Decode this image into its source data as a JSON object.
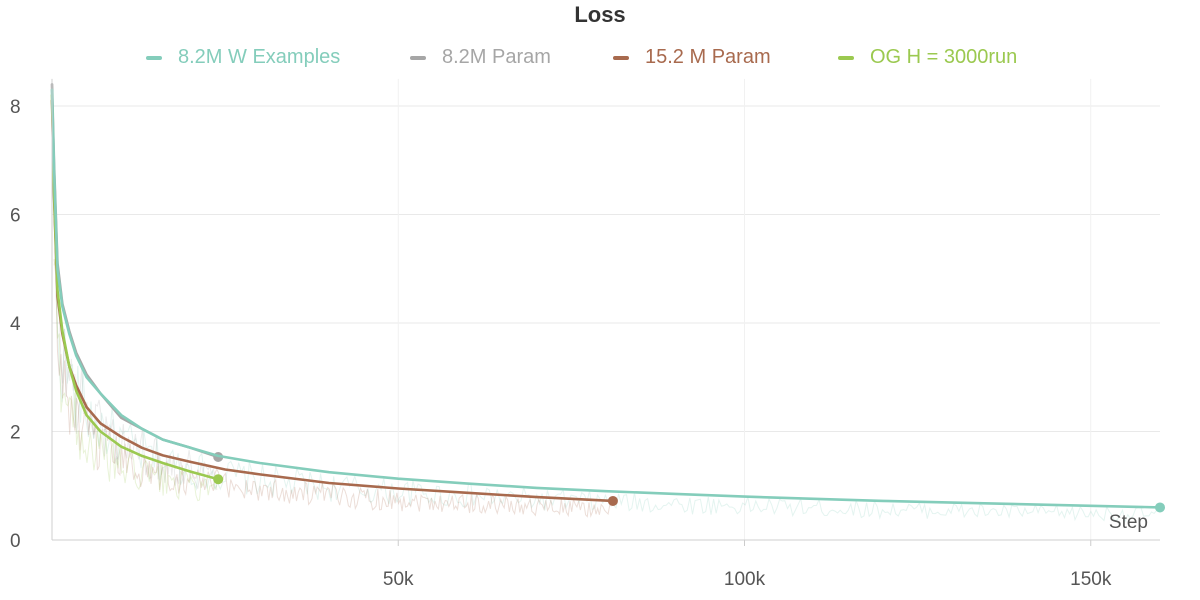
{
  "chart_data": {
    "type": "line",
    "title": "Loss",
    "xlabel": "Step",
    "ylabel": "",
    "xlim": [
      0,
      160000
    ],
    "ylim": [
      0,
      8.5
    ],
    "x_ticks": [
      50000,
      100000,
      150000
    ],
    "x_tick_labels": [
      "50k",
      "100k",
      "150k"
    ],
    "y_ticks": [
      0,
      2,
      4,
      6,
      8
    ],
    "y_tick_labels": [
      "0",
      "2",
      "4",
      "6",
      "8"
    ],
    "grid": true,
    "legend_position": "top",
    "series": [
      {
        "name": "8.2M W Examples",
        "color": "#84cdbb",
        "points": [
          [
            0,
            8.3
          ],
          [
            300,
            6.8
          ],
          [
            800,
            5.0
          ],
          [
            1500,
            4.3
          ],
          [
            2500,
            3.8
          ],
          [
            3500,
            3.4
          ],
          [
            5000,
            3.0
          ],
          [
            7000,
            2.7
          ],
          [
            10000,
            2.3
          ],
          [
            13000,
            2.05
          ],
          [
            16000,
            1.85
          ],
          [
            20000,
            1.7
          ],
          [
            24000,
            1.55
          ],
          [
            30000,
            1.42
          ],
          [
            40000,
            1.25
          ],
          [
            50000,
            1.13
          ],
          [
            60000,
            1.04
          ],
          [
            70000,
            0.96
          ],
          [
            80000,
            0.9
          ],
          [
            90000,
            0.85
          ],
          [
            100000,
            0.8
          ],
          [
            110000,
            0.76
          ],
          [
            120000,
            0.72
          ],
          [
            130000,
            0.69
          ],
          [
            140000,
            0.66
          ],
          [
            150000,
            0.63
          ],
          [
            160000,
            0.6
          ]
        ]
      },
      {
        "name": "8.2M Param",
        "color": "#a6a6a6",
        "points": [
          [
            0,
            8.4
          ],
          [
            300,
            6.9
          ],
          [
            800,
            5.1
          ],
          [
            1500,
            4.35
          ],
          [
            2500,
            3.85
          ],
          [
            3500,
            3.45
          ],
          [
            5000,
            3.05
          ],
          [
            7000,
            2.7
          ],
          [
            10000,
            2.25
          ],
          [
            13000,
            2.05
          ],
          [
            16000,
            1.85
          ],
          [
            20000,
            1.7
          ],
          [
            24000,
            1.53
          ]
        ]
      },
      {
        "name": "15.2 M Param",
        "color": "#a86a4e",
        "points": [
          [
            0,
            8.1
          ],
          [
            300,
            6.3
          ],
          [
            800,
            4.5
          ],
          [
            1500,
            3.8
          ],
          [
            2500,
            3.2
          ],
          [
            3500,
            2.85
          ],
          [
            5000,
            2.45
          ],
          [
            7000,
            2.15
          ],
          [
            10000,
            1.9
          ],
          [
            13000,
            1.7
          ],
          [
            16000,
            1.56
          ],
          [
            20000,
            1.44
          ],
          [
            25000,
            1.3
          ],
          [
            30000,
            1.21
          ],
          [
            40000,
            1.05
          ],
          [
            50000,
            0.95
          ],
          [
            60000,
            0.87
          ],
          [
            70000,
            0.79
          ],
          [
            81000,
            0.72
          ]
        ]
      },
      {
        "name": "OG H = 3000run",
        "color": "#9bc950",
        "points": [
          [
            0,
            8.2
          ],
          [
            300,
            6.4
          ],
          [
            800,
            4.6
          ],
          [
            1500,
            3.85
          ],
          [
            2500,
            3.2
          ],
          [
            3500,
            2.75
          ],
          [
            5000,
            2.3
          ],
          [
            7000,
            2.0
          ],
          [
            10000,
            1.72
          ],
          [
            13000,
            1.55
          ],
          [
            16000,
            1.42
          ],
          [
            20000,
            1.26
          ],
          [
            24000,
            1.12
          ]
        ]
      }
    ],
    "legend_entries": [
      "8.2M W Examples",
      "8.2M Param",
      "15.2 M Param",
      "OG H = 3000run"
    ]
  }
}
